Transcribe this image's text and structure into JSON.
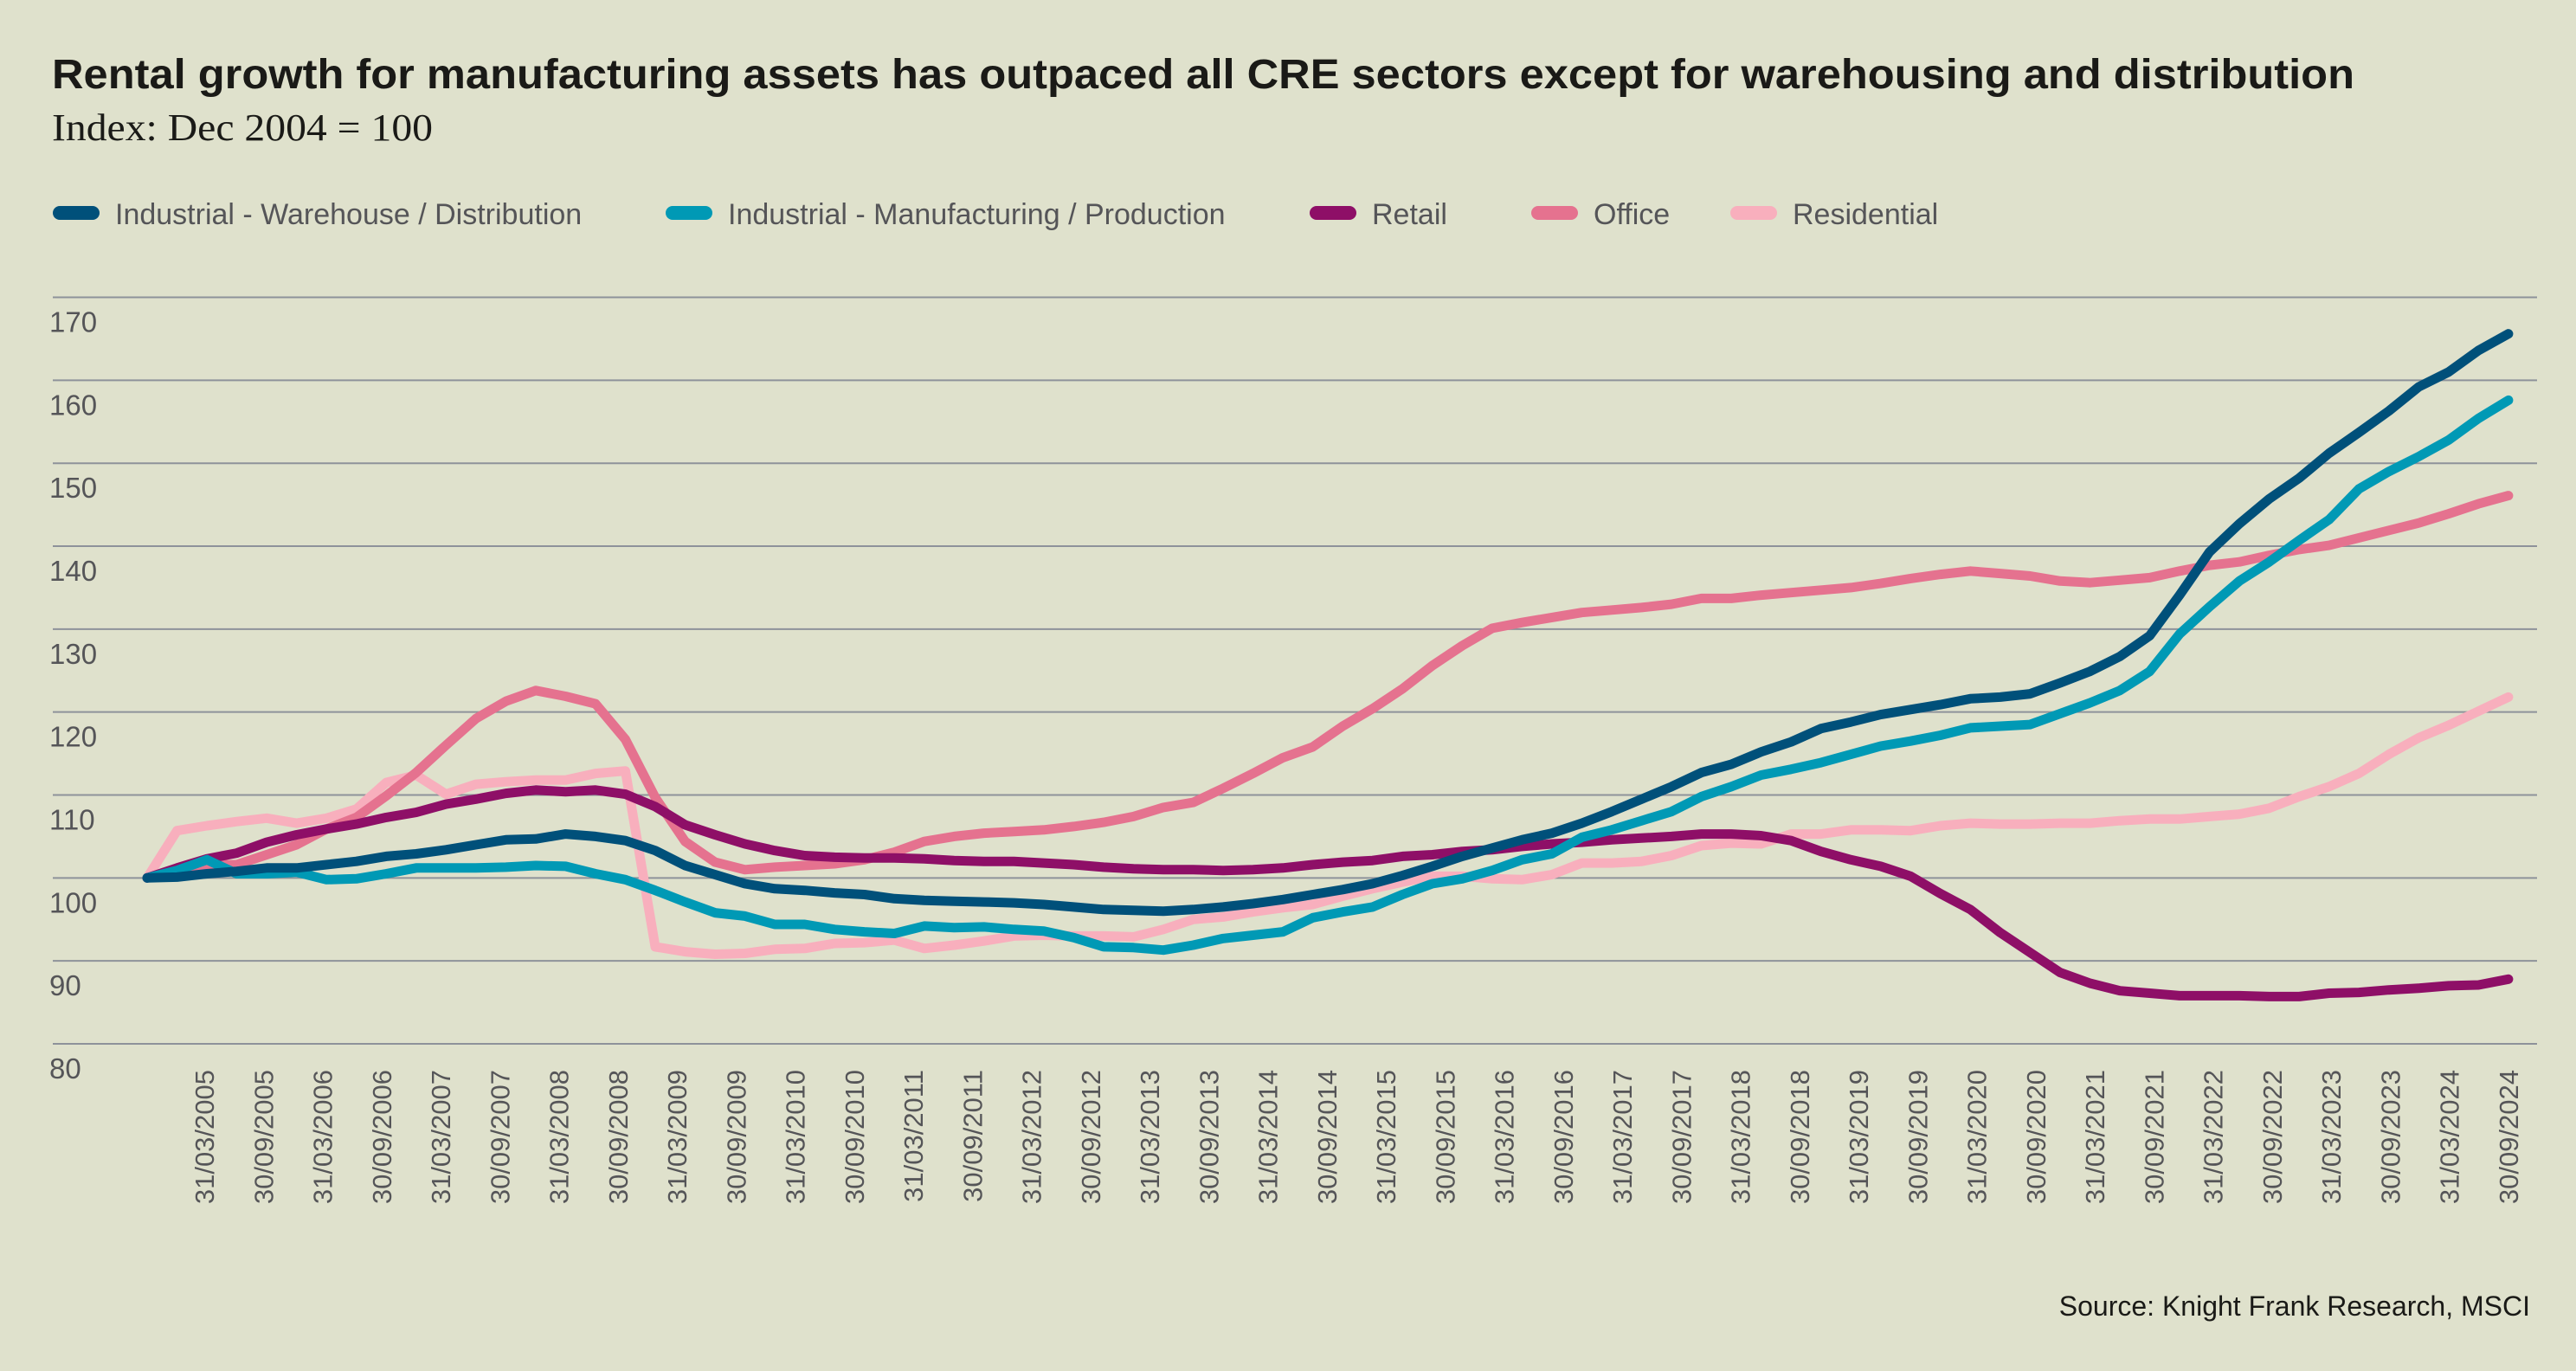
{
  "chart_data": {
    "type": "line",
    "title": "Rental growth for manufacturing assets has outpaced all CRE sectors except for warehousing and distribution",
    "subtitle": "Index: Dec 2004 = 100",
    "source": "Source: Knight Frank Research, MSCI",
    "xlabel": "",
    "ylabel": "",
    "ylim": [
      80,
      170
    ],
    "y_ticks": [
      "80",
      "90",
      "100",
      "110",
      "120",
      "130",
      "140",
      "150",
      "160",
      "170"
    ],
    "grid": true,
    "legend_position": "top-left",
    "x_tick_labels": [
      "31/03/2005",
      "30/09/2005",
      "31/03/2006",
      "30/09/2006",
      "31/03/2007",
      "30/09/2007",
      "31/03/2008",
      "30/09/2008",
      "31/03/2009",
      "30/09/2009",
      "31/03/2010",
      "30/09/2010",
      "31/03/2011",
      "30/09/2011",
      "31/03/2012",
      "30/09/2012",
      "31/03/2013",
      "30/09/2013",
      "31/03/2014",
      "30/09/2014",
      "31/03/2015",
      "30/09/2015",
      "31/03/2016",
      "30/09/2016",
      "31/03/2017",
      "30/09/2017",
      "31/03/2018",
      "30/09/2018",
      "31/03/2019",
      "30/09/2019",
      "31/03/2020",
      "30/09/2020",
      "31/03/2021",
      "30/09/2021",
      "31/03/2022",
      "30/09/2022",
      "31/03/2023",
      "30/09/2023",
      "31/03/2024",
      "30/09/2024"
    ],
    "x": [
      "31/12/2004",
      "31/03/2005",
      "30/06/2005",
      "30/09/2005",
      "31/12/2005",
      "31/03/2006",
      "30/06/2006",
      "30/09/2006",
      "31/12/2006",
      "31/03/2007",
      "30/06/2007",
      "30/09/2007",
      "31/12/2007",
      "31/03/2008",
      "30/06/2008",
      "30/09/2008",
      "31/12/2008",
      "31/03/2009",
      "30/06/2009",
      "30/09/2009",
      "31/12/2009",
      "31/03/2010",
      "30/06/2010",
      "30/09/2010",
      "31/12/2010",
      "31/03/2011",
      "30/06/2011",
      "30/09/2011",
      "31/12/2011",
      "31/03/2012",
      "30/06/2012",
      "30/09/2012",
      "31/12/2012",
      "31/03/2013",
      "30/06/2013",
      "30/09/2013",
      "31/12/2013",
      "31/03/2014",
      "30/06/2014",
      "30/09/2014",
      "31/12/2014",
      "31/03/2015",
      "30/06/2015",
      "30/09/2015",
      "31/12/2015",
      "31/03/2016",
      "30/06/2016",
      "30/09/2016",
      "31/12/2016",
      "31/03/2017",
      "30/06/2017",
      "30/09/2017",
      "31/12/2017",
      "31/03/2018",
      "30/06/2018",
      "30/09/2018",
      "31/12/2018",
      "31/03/2019",
      "30/06/2019",
      "30/09/2019",
      "31/12/2019",
      "31/03/2020",
      "30/06/2020",
      "30/09/2020",
      "31/12/2020",
      "31/03/2021",
      "30/06/2021",
      "30/09/2021",
      "31/12/2021",
      "31/03/2022",
      "30/06/2022",
      "30/09/2022",
      "31/12/2022",
      "31/03/2023",
      "30/06/2023",
      "30/09/2023",
      "31/12/2023",
      "31/03/2024",
      "30/06/2024",
      "30/09/2024"
    ],
    "series": [
      {
        "name": "Industrial - Warehouse / Distribution",
        "color": "#00507a",
        "values": [
          100,
          100.1,
          100.5,
          100.8,
          101.2,
          101.2,
          101.6,
          102.0,
          102.6,
          102.9,
          103.4,
          104.0,
          104.6,
          104.7,
          105.3,
          105.0,
          104.5,
          103.3,
          101.5,
          100.4,
          99.3,
          98.7,
          98.5,
          98.2,
          98.0,
          97.5,
          97.3,
          97.2,
          97.1,
          97.0,
          96.8,
          96.5,
          96.2,
          96.1,
          96.0,
          96.2,
          96.5,
          96.9,
          97.4,
          98.0,
          98.6,
          99.3,
          100.3,
          101.4,
          102.6,
          103.6,
          104.6,
          105.4,
          106.6,
          108.0,
          109.5,
          111.0,
          112.7,
          113.7,
          115.2,
          116.4,
          118.0,
          118.8,
          119.7,
          120.3,
          120.9,
          121.6,
          121.8,
          122.2,
          123.5,
          124.9,
          126.7,
          129.2,
          134.1,
          139.3,
          142.7,
          145.7,
          148.2,
          151.2,
          153.7,
          156.3,
          159.2,
          161.0,
          163.6,
          165.6
        ]
      },
      {
        "name": "Industrial - Manufacturing / Production",
        "color": "#0099b5",
        "values": [
          100,
          100.9,
          102.2,
          100.5,
          100.5,
          100.7,
          99.8,
          99.9,
          100.5,
          101.2,
          101.2,
          101.2,
          101.3,
          101.5,
          101.4,
          100.5,
          99.8,
          98.5,
          97.1,
          95.8,
          95.4,
          94.4,
          94.4,
          93.8,
          93.5,
          93.3,
          94.2,
          94.0,
          94.1,
          93.8,
          93.6,
          92.8,
          91.7,
          91.6,
          91.3,
          91.9,
          92.7,
          93.1,
          93.5,
          95.2,
          95.9,
          96.5,
          98.0,
          99.3,
          99.9,
          100.9,
          102.2,
          102.9,
          104.9,
          105.8,
          106.9,
          108.0,
          109.8,
          111.0,
          112.4,
          113.1,
          113.9,
          114.9,
          115.9,
          116.5,
          117.2,
          118.1,
          118.3,
          118.5,
          119.8,
          121.1,
          122.6,
          124.9,
          129.4,
          132.7,
          135.8,
          138.1,
          140.7,
          143.2,
          146.9,
          149.0,
          150.8,
          152.8,
          155.4,
          157.6
        ]
      },
      {
        "name": "Retail",
        "color": "#8e0f67",
        "values": [
          100,
          101.2,
          102.3,
          103.0,
          104.3,
          105.2,
          105.9,
          106.5,
          107.3,
          107.9,
          108.9,
          109.5,
          110.2,
          110.6,
          110.4,
          110.6,
          110.1,
          108.6,
          106.4,
          105.2,
          104.1,
          103.3,
          102.7,
          102.5,
          102.4,
          102.4,
          102.3,
          102.1,
          102.0,
          102.0,
          101.8,
          101.6,
          101.3,
          101.1,
          101.0,
          101.0,
          100.9,
          101.0,
          101.2,
          101.6,
          101.9,
          102.1,
          102.6,
          102.8,
          103.2,
          103.4,
          103.8,
          104.1,
          104.3,
          104.6,
          104.8,
          105.0,
          105.3,
          105.3,
          105.1,
          104.5,
          103.2,
          102.2,
          101.4,
          100.2,
          98.1,
          96.2,
          93.4,
          91.0,
          88.6,
          87.3,
          86.4,
          86.1,
          85.8,
          85.8,
          85.8,
          85.7,
          85.7,
          86.1,
          86.2,
          86.5,
          86.7,
          87.0,
          87.1,
          87.8
        ]
      },
      {
        "name": "Office",
        "color": "#e5728f",
        "values": [
          100,
          100.9,
          101.6,
          101.6,
          102.8,
          104.0,
          105.9,
          107.3,
          109.9,
          112.7,
          116.0,
          119.2,
          121.3,
          122.6,
          121.9,
          121.0,
          116.7,
          109.7,
          104.4,
          101.9,
          101.0,
          101.3,
          101.5,
          101.7,
          102.2,
          103.1,
          104.4,
          105.0,
          105.4,
          105.6,
          105.8,
          106.2,
          106.7,
          107.4,
          108.5,
          109.1,
          110.8,
          112.6,
          114.5,
          115.8,
          118.3,
          120.4,
          122.8,
          125.6,
          128.0,
          130.1,
          130.8,
          131.4,
          132.0,
          132.3,
          132.6,
          133.0,
          133.7,
          133.7,
          134.1,
          134.4,
          134.7,
          135.0,
          135.5,
          136.1,
          136.6,
          137.0,
          136.7,
          136.4,
          135.8,
          135.6,
          135.9,
          136.2,
          137.0,
          137.7,
          138.1,
          138.9,
          139.6,
          140.1,
          141.0,
          141.9,
          142.8,
          143.9,
          145.1,
          146.1
        ]
      },
      {
        "name": "Residential",
        "color": "#f8afbd",
        "values": [
          100,
          105.7,
          106.3,
          106.8,
          107.2,
          106.6,
          107.2,
          108.3,
          111.5,
          112.4,
          110.1,
          111.3,
          111.6,
          111.8,
          111.8,
          112.6,
          112.9,
          91.7,
          91.1,
          90.8,
          90.9,
          91.4,
          91.5,
          92.1,
          92.2,
          92.5,
          91.5,
          91.9,
          92.4,
          93.0,
          93.1,
          93.0,
          93.0,
          92.9,
          93.8,
          95.0,
          95.3,
          95.9,
          96.4,
          96.8,
          97.8,
          98.7,
          99.5,
          100.2,
          100.2,
          99.9,
          99.8,
          100.4,
          101.8,
          101.8,
          102.0,
          102.7,
          103.9,
          104.2,
          104.1,
          105.3,
          105.3,
          105.8,
          105.8,
          105.7,
          106.3,
          106.6,
          106.5,
          106.5,
          106.6,
          106.6,
          106.9,
          107.1,
          107.1,
          107.4,
          107.7,
          108.4,
          109.8,
          111.0,
          112.6,
          114.9,
          116.9,
          118.4,
          120.1,
          121.8
        ]
      }
    ]
  }
}
